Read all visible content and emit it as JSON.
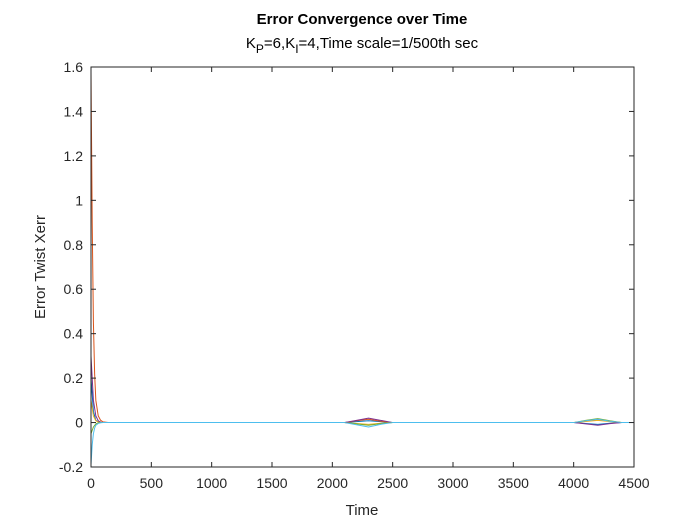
{
  "chart_data": {
    "type": "line",
    "title": "Error Convergence over Time",
    "subtitle": {
      "k": "K",
      "p": "P",
      "eq1": "=6,K",
      "i": "I",
      "rest": "=4,Time scale=1/500th sec"
    },
    "xlabel": "Time",
    "ylabel": "Error Twist Xerr",
    "xlim": [
      0,
      4500
    ],
    "ylim": [
      -0.2,
      1.6
    ],
    "xticks": [
      "0",
      "500",
      "1000",
      "1500",
      "2000",
      "2500",
      "3000",
      "3500",
      "4000",
      "4500"
    ],
    "yticks": [
      "-0.2",
      "0",
      "0.2",
      "0.4",
      "0.6",
      "0.8",
      "1",
      "1.2",
      "1.4",
      "1.6"
    ],
    "grid": false,
    "series": [
      {
        "color": "#0072BD",
        "x": [
          0,
          20,
          40,
          60,
          80,
          100,
          150,
          2100,
          2200,
          2300,
          2400,
          2500,
          2600,
          4000,
          4100,
          4200,
          4300,
          4400,
          4500
        ],
        "y": [
          0.2,
          0.05,
          0.01,
          0.003,
          0.001,
          0.0,
          0.0,
          0.0,
          0.004,
          0.008,
          0.004,
          0.0,
          0.0,
          0.0,
          -0.004,
          -0.008,
          -0.003,
          0.0,
          0.0
        ]
      },
      {
        "color": "#D95319",
        "x": [
          0,
          10,
          20,
          30,
          40,
          60,
          80,
          100,
          150,
          2100,
          2200,
          2300,
          2400,
          2500,
          2600,
          4000,
          4100,
          4200,
          4300,
          4400,
          4500
        ],
        "y": [
          1.58,
          0.9,
          0.45,
          0.22,
          0.1,
          0.03,
          0.01,
          0.003,
          0.0,
          0.0,
          0.008,
          0.015,
          0.006,
          0.0,
          0.0,
          0.0,
          0.006,
          0.012,
          0.006,
          0.0,
          0.0
        ]
      },
      {
        "color": "#EDB120",
        "x": [
          0,
          20,
          40,
          60,
          80,
          100,
          150,
          2100,
          2200,
          2300,
          2400,
          2500,
          2600,
          4000,
          4100,
          4200,
          4300,
          4400,
          4500
        ],
        "y": [
          0.1,
          0.03,
          0.008,
          0.002,
          0.0,
          0.0,
          0.0,
          0.0,
          -0.004,
          -0.008,
          -0.003,
          0.0,
          0.0,
          0.0,
          0.005,
          0.01,
          0.004,
          0.0,
          0.0
        ]
      },
      {
        "color": "#7E2F8E",
        "x": [
          0,
          20,
          40,
          60,
          80,
          100,
          150,
          2100,
          2200,
          2300,
          2400,
          2500,
          2600,
          4000,
          4100,
          4200,
          4300,
          4400,
          4500
        ],
        "y": [
          0.3,
          0.1,
          0.03,
          0.008,
          0.002,
          0.0,
          0.0,
          0.0,
          0.01,
          0.02,
          0.01,
          0.0,
          0.0,
          0.0,
          -0.006,
          -0.012,
          -0.005,
          0.0,
          0.0
        ]
      },
      {
        "color": "#77AC30",
        "x": [
          0,
          20,
          40,
          60,
          80,
          100,
          150,
          2100,
          2200,
          2300,
          2400,
          2500,
          2600,
          4000,
          4100,
          4200,
          4300,
          4400,
          4500
        ],
        "y": [
          -0.05,
          -0.02,
          -0.006,
          -0.002,
          0.0,
          0.0,
          0.0,
          0.0,
          -0.006,
          -0.012,
          -0.005,
          0.0,
          0.0,
          0.0,
          0.01,
          0.018,
          0.008,
          0.0,
          0.0
        ]
      },
      {
        "color": "#4DBEEE",
        "x": [
          0,
          10,
          20,
          30,
          40,
          60,
          80,
          100,
          150,
          2100,
          2200,
          2300,
          2400,
          2500,
          2600,
          4000,
          4100,
          4200,
          4300,
          4400,
          4500
        ],
        "y": [
          -0.19,
          -0.1,
          -0.05,
          -0.025,
          -0.012,
          -0.004,
          -0.001,
          0.0,
          0.0,
          0.0,
          -0.01,
          -0.02,
          -0.008,
          0.0,
          0.0,
          0.0,
          0.008,
          0.015,
          0.006,
          0.0,
          0.0
        ]
      }
    ]
  }
}
